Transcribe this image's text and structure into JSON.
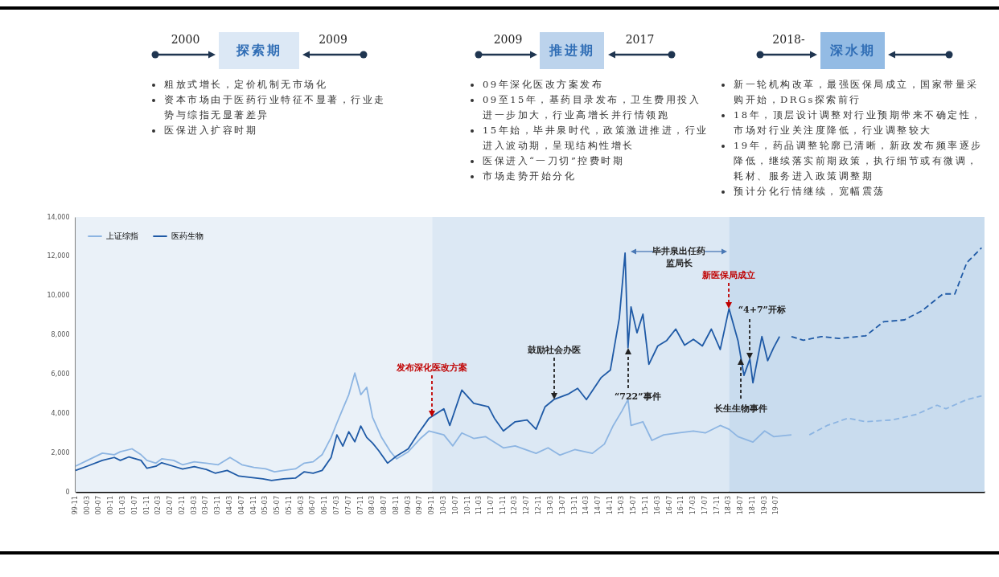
{
  "chart_data": {
    "type": "line",
    "series": [
      {
        "name": "上证综指",
        "color": "#8db5e2",
        "x": [
          "1999-11",
          "2000-03",
          "2000-08",
          "2000-12",
          "2001-02",
          "2001-06",
          "2001-09",
          "2001-11",
          "2002-02",
          "2002-04",
          "2002-08",
          "2002-11",
          "2003-03",
          "2003-07",
          "2003-11",
          "2004-03",
          "2004-07",
          "2004-11",
          "2005-03",
          "2005-06",
          "2005-09",
          "2006-01",
          "2006-04",
          "2006-07",
          "2006-10",
          "2007-01",
          "2007-03",
          "2007-05",
          "2007-07",
          "2007-09",
          "2007-11",
          "2008-01",
          "2008-03",
          "2008-06",
          "2008-09",
          "2008-11",
          "2009-03",
          "2009-07",
          "2009-10",
          "2010-03",
          "2010-06",
          "2010-09",
          "2011-01",
          "2011-05",
          "2011-11",
          "2012-03",
          "2012-10",
          "2013-02",
          "2013-06",
          "2013-11",
          "2014-05",
          "2014-09",
          "2014-12",
          "2015-03",
          "2015-05",
          "2015-06",
          "2015-10",
          "2016-01",
          "2016-05",
          "2016-10",
          "2017-03",
          "2017-07",
          "2017-12",
          "2018-03",
          "2018-06",
          "2018-11",
          "2019-03",
          "2019-06",
          "2019-12"
        ],
        "values": [
          1310,
          1600,
          1970,
          1890,
          2040,
          2190,
          1890,
          1600,
          1460,
          1680,
          1600,
          1380,
          1530,
          1460,
          1380,
          1750,
          1380,
          1240,
          1170,
          1020,
          1090,
          1170,
          1460,
          1530,
          1890,
          2770,
          3500,
          4230,
          4950,
          6050,
          4950,
          5320,
          3790,
          2770,
          2040,
          1680,
          2040,
          2700,
          3100,
          2900,
          2340,
          3000,
          2720,
          2810,
          2240,
          2340,
          1960,
          2240,
          1870,
          2150,
          1960,
          2430,
          3380,
          4130,
          4700,
          3380,
          3570,
          2620,
          2900,
          3000,
          3100,
          3000,
          3380,
          3190,
          2810,
          2530,
          3100,
          2810,
          2900
        ]
      },
      {
        "name": "医药生物",
        "color": "#1f5aa6",
        "x": [
          "1999-11",
          "2000-03",
          "2000-08",
          "2000-12",
          "2001-02",
          "2001-05",
          "2001-09",
          "2001-11",
          "2002-02",
          "2002-04",
          "2002-08",
          "2002-11",
          "2003-03",
          "2003-07",
          "2003-10",
          "2004-02",
          "2004-06",
          "2004-10",
          "2005-02",
          "2005-05",
          "2005-09",
          "2006-01",
          "2006-04",
          "2006-07",
          "2006-10",
          "2007-01",
          "2007-03",
          "2007-05",
          "2007-07",
          "2007-09",
          "2007-11",
          "2008-01",
          "2008-03",
          "2008-05",
          "2008-08",
          "2008-11",
          "2009-03",
          "2009-06",
          "2009-10",
          "2010-03",
          "2010-05",
          "2010-09",
          "2011-01",
          "2011-06",
          "2011-08",
          "2011-11",
          "2012-03",
          "2012-07",
          "2012-10",
          "2013-01",
          "2013-04",
          "2013-09",
          "2013-12",
          "2014-03",
          "2014-08",
          "2014-11",
          "2015-02",
          "2015-04",
          "2015-05",
          "2015-06",
          "2015-08",
          "2015-10",
          "2015-12",
          "2016-03",
          "2016-06",
          "2016-09",
          "2016-12",
          "2017-03",
          "2017-06",
          "2017-09",
          "2017-12",
          "2018-03",
          "2018-06",
          "2018-08",
          "2018-10",
          "2018-11",
          "2019-02",
          "2019-04",
          "2019-06",
          "2019-08"
        ],
        "values": [
          1090,
          1310,
          1600,
          1750,
          1600,
          1780,
          1600,
          1200,
          1300,
          1480,
          1300,
          1160,
          1280,
          1140,
          950,
          1090,
          800,
          730,
          660,
          580,
          660,
          700,
          1020,
          950,
          1090,
          1750,
          2900,
          2330,
          3060,
          2550,
          3350,
          2770,
          2480,
          2110,
          1460,
          1820,
          2190,
          2900,
          3750,
          4230,
          3380,
          5180,
          4510,
          4330,
          3750,
          3100,
          3570,
          3660,
          3190,
          4330,
          4700,
          4990,
          5270,
          4700,
          5830,
          6200,
          8850,
          12160,
          7340,
          9420,
          8100,
          9050,
          6490,
          7430,
          7710,
          8290,
          7470,
          7770,
          7430,
          8290,
          7250,
          9330,
          7700,
          5930,
          6760,
          5550,
          7910,
          6680,
          7340,
          7910
        ]
      },
      {
        "color": "#8db5e2",
        "line_style": "dashed",
        "x": [
          "2020-06",
          "2020-12",
          "2021-07",
          "2022-01",
          "2022-10",
          "2023-06",
          "2024-01",
          "2024-04",
          "2024-11",
          "2025-04"
        ],
        "values": [
          2900,
          3380,
          3750,
          3570,
          3660,
          3940,
          4410,
          4230,
          4700,
          4890
        ]
      },
      {
        "color": "#1f5aa6",
        "line_style": "dashed",
        "x": [
          "2019-12",
          "2020-04",
          "2020-10",
          "2021-04",
          "2022-01",
          "2022-07",
          "2023-02",
          "2023-08",
          "2024-03",
          "2024-07",
          "2024-11",
          "2025-04"
        ],
        "values": [
          7910,
          7720,
          7910,
          7810,
          7950,
          8660,
          8760,
          9230,
          10080,
          10080,
          11680,
          12430
        ]
      }
    ],
    "xlim": [
      "1999-11",
      "2025-05"
    ],
    "xticks": [
      {
        "value": "1999-11",
        "label": "99-11"
      },
      {
        "value": "2000-03",
        "label": "00-03"
      },
      {
        "value": "2000-07",
        "label": "00-07"
      },
      {
        "value": "2000-11",
        "label": "00-11"
      },
      {
        "value": "2001-03",
        "label": "01-03"
      },
      {
        "value": "2001-07",
        "label": "01-07"
      },
      {
        "value": "2001-11",
        "label": "01-11"
      },
      {
        "value": "2002-03",
        "label": "02-03"
      },
      {
        "value": "2002-07",
        "label": "02-07"
      },
      {
        "value": "2002-11",
        "label": "02-11"
      },
      {
        "value": "2003-03",
        "label": "03-03"
      },
      {
        "value": "2003-07",
        "label": "03-07"
      },
      {
        "value": "2003-11",
        "label": "03-11"
      },
      {
        "value": "2004-03",
        "label": "04-03"
      },
      {
        "value": "2004-07",
        "label": "04-07"
      },
      {
        "value": "2004-11",
        "label": "04-11"
      },
      {
        "value": "2005-03",
        "label": "05-03"
      },
      {
        "value": "2005-07",
        "label": "05-07"
      },
      {
        "value": "2005-11",
        "label": "05-11"
      },
      {
        "value": "2006-03",
        "label": "06-03"
      },
      {
        "value": "2006-07",
        "label": "06-07"
      },
      {
        "value": "2006-11",
        "label": "06-11"
      },
      {
        "value": "2007-03",
        "label": "07-03"
      },
      {
        "value": "2007-07",
        "label": "07-07"
      },
      {
        "value": "2007-11",
        "label": "07-11"
      },
      {
        "value": "2008-03",
        "label": "08-03"
      },
      {
        "value": "2008-07",
        "label": "08-07"
      },
      {
        "value": "2008-11",
        "label": "08-11"
      },
      {
        "value": "2009-03",
        "label": "09-03"
      },
      {
        "value": "2009-07",
        "label": "09-07"
      },
      {
        "value": "2009-11",
        "label": "09-11"
      },
      {
        "value": "2010-03",
        "label": "10-03"
      },
      {
        "value": "2010-07",
        "label": "10-07"
      },
      {
        "value": "2010-11",
        "label": "10-11"
      },
      {
        "value": "2011-03",
        "label": "11-03"
      },
      {
        "value": "2011-07",
        "label": "11-07"
      },
      {
        "value": "2011-11",
        "label": "11-11"
      },
      {
        "value": "2012-03",
        "label": "12-03"
      },
      {
        "value": "2012-07",
        "label": "12-07"
      },
      {
        "value": "2012-11",
        "label": "12-11"
      },
      {
        "value": "2013-03",
        "label": "13-03"
      },
      {
        "value": "2013-07",
        "label": "13-07"
      },
      {
        "value": "2013-11",
        "label": "13-11"
      },
      {
        "value": "2014-03",
        "label": "14-03"
      },
      {
        "value": "2014-07",
        "label": "14-07"
      },
      {
        "value": "2014-11",
        "label": "14-11"
      },
      {
        "value": "2015-03",
        "label": "15-03"
      },
      {
        "value": "2015-07",
        "label": "15-07"
      },
      {
        "value": "2015-11",
        "label": "15-11"
      },
      {
        "value": "2016-03",
        "label": "16-03"
      },
      {
        "value": "2016-07",
        "label": "16-07"
      },
      {
        "value": "2016-11",
        "label": "16-11"
      },
      {
        "value": "2017-03",
        "label": "17-03"
      },
      {
        "value": "2017-07",
        "label": "17-07"
      },
      {
        "value": "2017-11",
        "label": "17-11"
      },
      {
        "value": "2018-03",
        "label": "18-03"
      },
      {
        "value": "2018-07",
        "label": "18-07"
      },
      {
        "value": "2018-11",
        "label": "18-11"
      },
      {
        "value": "2019-03",
        "label": "19-03"
      },
      {
        "value": "2019-07",
        "label": "19-07"
      }
    ],
    "ylim": [
      0,
      14000
    ],
    "yticks": [
      0,
      {
        "value": 2000,
        "label": "2,000"
      },
      {
        "value": 4000,
        "label": "4,000"
      },
      {
        "value": 6000,
        "label": "6,000"
      },
      {
        "value": 8000,
        "label": "8,000"
      },
      {
        "value": 10000,
        "label": "10,000"
      },
      {
        "value": 12000,
        "label": "12,000"
      },
      {
        "value": 14000,
        "label": "14,000"
      }
    ],
    "legend": "top left",
    "bands": [
      {
        "axis": "x",
        "from": "1999-11",
        "to": "2009-11",
        "color": "#eaf1f8"
      },
      {
        "axis": "x",
        "from": "2009-11",
        "to": "2018-03",
        "color": "#dce8f4"
      },
      {
        "axis": "x",
        "from": "2018-03",
        "to": "2025-05",
        "color": "#c9dcee"
      }
    ],
    "annotations": [
      "2000",
      "探索期",
      "2009",
      "粗放式增长，定价机制无市场化",
      "资本市场由于医药行业特征不显著，行业走势与综指无显著差异",
      "医保进入扩容时期",
      "2009",
      "推进期",
      "2017",
      "09年深化医改方案发布",
      "09至15年，基药目录发布，卫生费用投入进一步加大，行业高增长并行情领跑",
      "15年始，毕井泉时代，政策激进推进，行业进入波动期，呈现结构性增长",
      "医保进入“一刀切”控费时期",
      "市场走势开始分化",
      "2018-",
      "深水期",
      "新一轮机构改革，最强医保局成立，国家带量采购开始，DRGs探索前行",
      "18年，顶层设计调整对行业预期带来不确定性，市场对行业关注度降低，行业调整较大",
      "19年，药品调整轮廓已清晰，新政发布频率逐步降低，继续落实前期政策，执行细节或有微调，耗材、服务进入政策调整期",
      "预计分化行情继续，宽幅震荡",
      "毕井泉出任药监局长",
      {
        "text": "发布深化医改方案",
        "x": "2009-11",
        "y": 3800
      },
      {
        "text": "鼓励社会办医",
        "x": "2013-04",
        "y": 4700
      },
      {
        "text": "“722”事件",
        "x": "2015-05",
        "y": 7340
      },
      {
        "text": "新医保局成立",
        "x": "2018-03",
        "y": 9330
      },
      {
        "text": "“4+7”开标",
        "x": "2018-10",
        "y": 6760
      },
      {
        "text": "长生生物事件",
        "x": "2018-07",
        "y": 6800
      }
    ]
  }
}
